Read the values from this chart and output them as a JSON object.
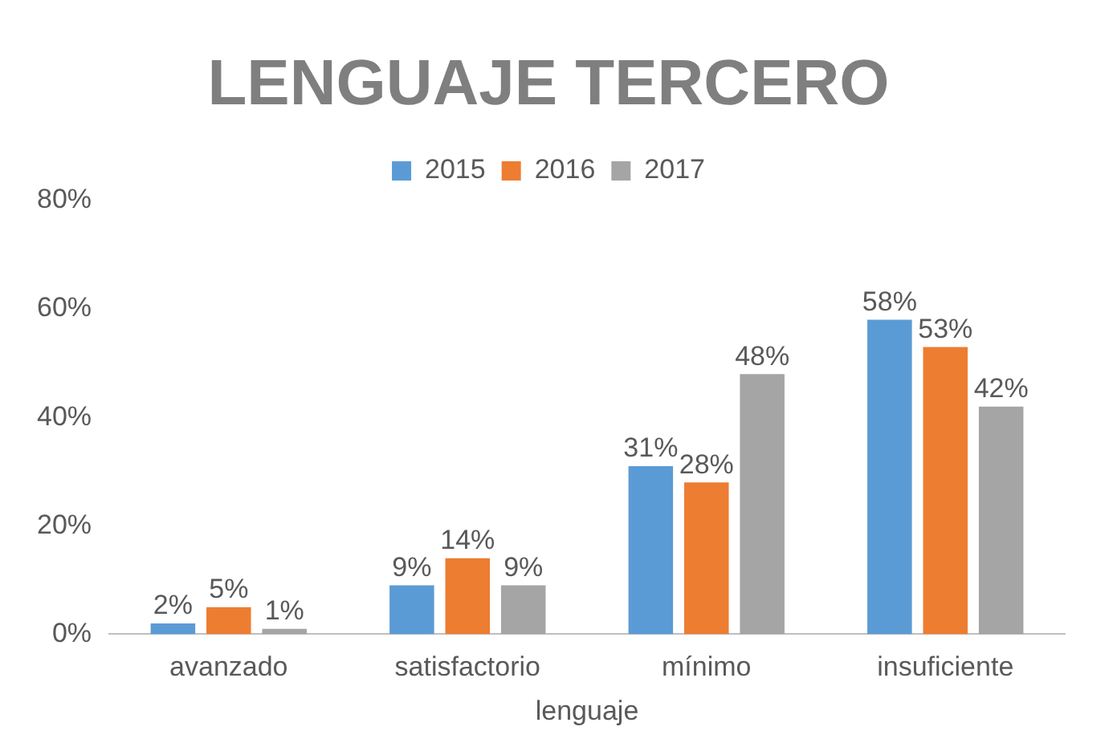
{
  "chart_data": {
    "type": "bar",
    "title": "LENGUAJE TERCERO",
    "xlabel": "lenguaje",
    "categories": [
      "avanzado",
      "satisfactorio",
      "mínimo",
      "insuficiente"
    ],
    "series": [
      {
        "name": "2015",
        "color": "#5b9bd5",
        "values": [
          2,
          9,
          31,
          58
        ],
        "value_labels": [
          "2%",
          "9%",
          "31%",
          "58%"
        ]
      },
      {
        "name": "2016",
        "color": "#ed7d31",
        "values": [
          5,
          14,
          28,
          53
        ],
        "value_labels": [
          "5%",
          "14%",
          "28%",
          "53%"
        ]
      },
      {
        "name": "2017",
        "color": "#a5a5a5",
        "values": [
          1,
          9,
          48,
          42
        ],
        "value_labels": [
          "1%",
          "9%",
          "48%",
          "42%"
        ]
      }
    ],
    "ylim": [
      0,
      80
    ],
    "yticks": [
      {
        "value": 0,
        "label": "0%"
      },
      {
        "value": 20,
        "label": "20%"
      },
      {
        "value": 40,
        "label": "40%"
      },
      {
        "value": 60,
        "label": "60%"
      },
      {
        "value": 80,
        "label": "80%"
      }
    ],
    "grid": false,
    "legend": "top"
  }
}
